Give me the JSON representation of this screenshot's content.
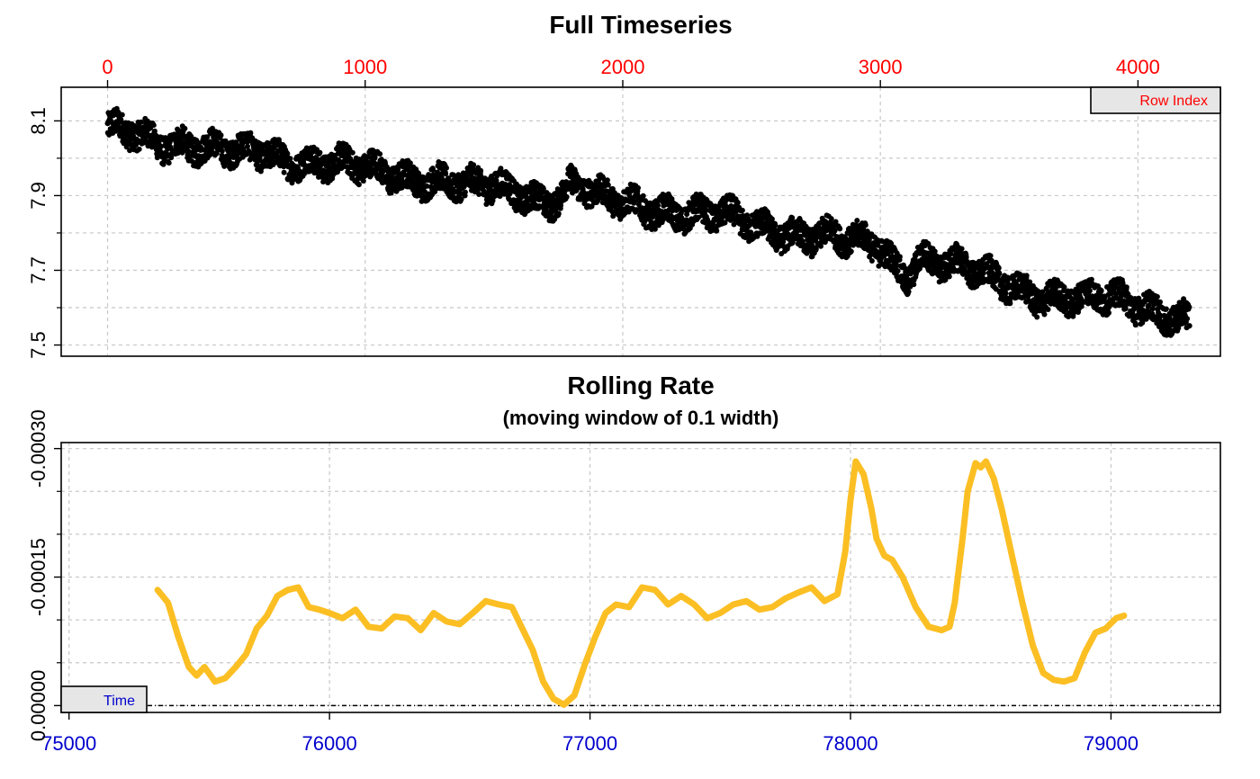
{
  "colors": {
    "row_index_axis": "#ff0000",
    "time_axis": "#0000cd",
    "timeseries_points": "#000000",
    "rolling_rate_line": "#fbbf24",
    "reference_line": "#000000"
  },
  "chart_data": [
    {
      "type": "scatter",
      "title": "Full Timeseries",
      "x_axis_position": "top",
      "x_axis_tag": "Row Index",
      "x_ticks": [
        0,
        1000,
        2000,
        3000,
        4000
      ],
      "x_tick_labels": [
        "0",
        "1000",
        "2000",
        "3000",
        "4000"
      ],
      "xlim": [
        -180,
        4320
      ],
      "y_ticks": [
        7.5,
        7.7,
        7.9,
        8.1
      ],
      "y_tick_labels": [
        "7.5",
        "7.7",
        "7.9",
        "8.1"
      ],
      "y_minor_ticks": [
        7.6,
        7.8,
        8.0
      ],
      "ylim": [
        7.47,
        8.19
      ],
      "grid": true,
      "point_count": 4200,
      "noise_band": 0.075,
      "series": [
        {
          "x": [
            0,
            100,
            200,
            300,
            400,
            500,
            600,
            700,
            800,
            900,
            1000,
            1100,
            1200,
            1300,
            1400,
            1500,
            1600,
            1700,
            1750,
            1800,
            1850,
            1900,
            2000,
            2100,
            2200,
            2300,
            2400,
            2500,
            2600,
            2700,
            2800,
            2900,
            2950,
            3000,
            3050,
            3100,
            3150,
            3200,
            3300,
            3400,
            3500,
            3600,
            3700,
            3800,
            3900,
            4000,
            4100,
            4200
          ],
          "y": [
            8.07,
            8.07,
            8.05,
            8.04,
            8.02,
            8.01,
            8.02,
            8.0,
            7.99,
            7.98,
            7.97,
            7.96,
            7.95,
            7.94,
            7.92,
            7.92,
            7.91,
            7.89,
            7.9,
            7.93,
            7.92,
            7.89,
            7.88,
            7.87,
            7.86,
            7.85,
            7.84,
            7.82,
            7.81,
            7.8,
            7.79,
            7.77,
            7.77,
            7.76,
            7.72,
            7.69,
            7.74,
            7.73,
            7.71,
            7.68,
            7.66,
            7.64,
            7.63,
            7.62,
            7.62,
            7.61,
            7.59,
            7.57
          ]
        }
      ]
    },
    {
      "type": "line",
      "title": "Rolling Rate",
      "subtitle": "(moving window of 0.1 width)",
      "x_axis_position": "bottom",
      "x_axis_tag": "Time",
      "x_ticks": [
        75000,
        76000,
        77000,
        78000,
        79000
      ],
      "x_tick_labels": [
        "75000",
        "76000",
        "77000",
        "78000",
        "79000"
      ],
      "xlim": [
        74970,
        79420
      ],
      "y_ticks": [
        0.0,
        -0.00015,
        -0.0003
      ],
      "y_tick_labels": [
        "0.00000",
        "-0.00015",
        "-0.00030"
      ],
      "y_minor_ticks": [
        -5e-05,
        -0.0001,
        -0.0002,
        -0.00025
      ],
      "ylim": [
        8e-06,
        -0.000307
      ],
      "reference_line_y": 0.0,
      "grid": true,
      "series": [
        {
          "x": [
            75340,
            75380,
            75420,
            75460,
            75490,
            75520,
            75560,
            75600,
            75640,
            75680,
            75720,
            75760,
            75800,
            75840,
            75880,
            75920,
            75960,
            76000,
            76050,
            76100,
            76150,
            76200,
            76250,
            76300,
            76350,
            76400,
            76450,
            76500,
            76550,
            76600,
            76650,
            76700,
            76740,
            76780,
            76820,
            76860,
            76900,
            76940,
            76980,
            77020,
            77060,
            77100,
            77150,
            77200,
            77250,
            77300,
            77350,
            77400,
            77450,
            77500,
            77550,
            77600,
            77650,
            77700,
            77750,
            77800,
            77850,
            77900,
            77950,
            77980,
            78000,
            78020,
            78050,
            78080,
            78100,
            78130,
            78160,
            78200,
            78250,
            78300,
            78350,
            78380,
            78400,
            78430,
            78450,
            78480,
            78500,
            78520,
            78550,
            78580,
            78620,
            78660,
            78700,
            78740,
            78780,
            78820,
            78860,
            78900,
            78940,
            78980,
            79020,
            79050
          ],
          "y": [
            -0.000135,
            -0.00012,
            -8e-05,
            -4.5e-05,
            -3.5e-05,
            -4.5e-05,
            -2.8e-05,
            -3.2e-05,
            -4.5e-05,
            -6e-05,
            -9e-05,
            -0.000105,
            -0.000128,
            -0.000135,
            -0.000138,
            -0.000115,
            -0.000112,
            -0.000108,
            -0.000102,
            -0.000112,
            -9.2e-05,
            -9e-05,
            -0.000104,
            -0.000102,
            -8.8e-05,
            -0.000108,
            -9.8e-05,
            -9.5e-05,
            -0.000108,
            -0.000122,
            -0.000118,
            -0.000115,
            -9e-05,
            -6.5e-05,
            -2.8e-05,
            -8e-06,
            -1e-06,
            -1.2e-05,
            -4.8e-05,
            -8e-05,
            -0.000108,
            -0.000118,
            -0.000115,
            -0.000138,
            -0.000135,
            -0.000118,
            -0.000128,
            -0.000118,
            -0.000102,
            -0.000108,
            -0.000118,
            -0.000122,
            -0.000112,
            -0.000115,
            -0.000125,
            -0.000132,
            -0.000138,
            -0.000122,
            -0.00013,
            -0.00018,
            -0.00024,
            -0.000285,
            -0.00027,
            -0.00023,
            -0.000195,
            -0.000175,
            -0.00017,
            -0.00015,
            -0.000115,
            -9.2e-05,
            -8.8e-05,
            -9.2e-05,
            -0.00012,
            -0.000195,
            -0.00025,
            -0.000283,
            -0.000278,
            -0.000285,
            -0.000265,
            -0.00023,
            -0.000175,
            -0.00012,
            -7e-05,
            -3.8e-05,
            -3e-05,
            -2.8e-05,
            -3.2e-05,
            -6.2e-05,
            -8.5e-05,
            -9e-05,
            -0.000102,
            -0.000105
          ]
        }
      ]
    }
  ]
}
